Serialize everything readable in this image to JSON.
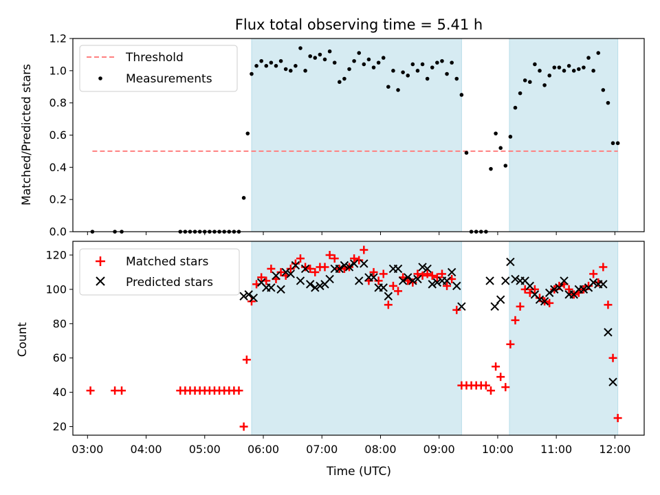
{
  "chart_data": [
    {
      "type": "scatter",
      "title": "Flux total observing time = 5.41 h",
      "xlabel": "",
      "ylabel": "Matched/Predicted stars",
      "xlim": [
        "02:45",
        "12:30"
      ],
      "ylim": [
        0,
        1.2
      ],
      "yticks": [
        "0.0",
        "0.2",
        "0.4",
        "0.6",
        "0.8",
        "1.0",
        "1.2"
      ],
      "grid": false,
      "legend_position": "top-left",
      "shaded_intervals": [
        [
          "05:48",
          "09:23"
        ],
        [
          "10:12",
          "12:03"
        ]
      ],
      "threshold": {
        "name": "Threshold",
        "value": 0.5,
        "x_start": "03:05",
        "x_end": "12:03",
        "color": "#ff7f7f"
      },
      "series": [
        {
          "name": "Measurements",
          "color": "#000000",
          "x": [
            "03:05",
            "03:28",
            "03:35",
            "04:35",
            "04:40",
            "04:45",
            "04:50",
            "04:55",
            "05:00",
            "05:05",
            "05:10",
            "05:15",
            "05:20",
            "05:25",
            "05:30",
            "05:35",
            "05:40",
            "05:44",
            "05:48",
            "05:53",
            "05:58",
            "06:03",
            "06:08",
            "06:13",
            "06:18",
            "06:23",
            "06:28",
            "06:33",
            "06:38",
            "06:43",
            "06:48",
            "06:53",
            "06:58",
            "07:03",
            "07:08",
            "07:13",
            "07:18",
            "07:23",
            "07:28",
            "07:33",
            "07:38",
            "07:43",
            "07:48",
            "07:53",
            "07:58",
            "08:03",
            "08:08",
            "08:13",
            "08:18",
            "08:23",
            "08:28",
            "08:33",
            "08:38",
            "08:43",
            "08:48",
            "08:53",
            "08:58",
            "09:03",
            "09:08",
            "09:13",
            "09:18",
            "09:23",
            "09:28",
            "09:33",
            "09:38",
            "09:43",
            "09:48",
            "09:53",
            "09:58",
            "10:03",
            "10:08",
            "10:13",
            "10:18",
            "10:23",
            "10:28",
            "10:33",
            "10:38",
            "10:43",
            "10:48",
            "10:53",
            "10:58",
            "11:03",
            "11:08",
            "11:13",
            "11:18",
            "11:23",
            "11:28",
            "11:33",
            "11:38",
            "11:43",
            "11:48",
            "11:53",
            "11:58",
            "12:03"
          ],
          "y": [
            0,
            0,
            0,
            0,
            0,
            0,
            0,
            0,
            0,
            0,
            0,
            0,
            0,
            0,
            0,
            0,
            0.21,
            0.61,
            0.98,
            1.03,
            1.06,
            1.03,
            1.05,
            1.03,
            1.06,
            1.01,
            1.0,
            1.03,
            1.14,
            1.0,
            1.09,
            1.08,
            1.1,
            1.07,
            1.12,
            1.05,
            0.93,
            0.95,
            1.01,
            1.06,
            1.11,
            1.04,
            1.07,
            1.02,
            1.05,
            1.08,
            0.9,
            1.0,
            0.88,
            0.99,
            0.97,
            1.04,
            1.0,
            1.04,
            0.95,
            1.02,
            1.05,
            1.06,
            0.98,
            1.05,
            0.95,
            0.85,
            0.49,
            0,
            0,
            0,
            0,
            0.39,
            0.61,
            0.52,
            0.41,
            0.59,
            0.77,
            0.86,
            0.94,
            0.93,
            1.04,
            1.0,
            0.91,
            0.97,
            1.02,
            1.02,
            1.0,
            1.03,
            1.0,
            1.01,
            1.02,
            1.08,
            1.0,
            1.11,
            0.88,
            0.8,
            0.55,
            0.55
          ]
        }
      ]
    },
    {
      "type": "scatter",
      "title": "",
      "xlabel": "Time (UTC)",
      "ylabel": "Count",
      "xlim": [
        "02:45",
        "12:30"
      ],
      "ylim": [
        15,
        128
      ],
      "yticks": [
        "20",
        "40",
        "60",
        "80",
        "100",
        "120"
      ],
      "xticks": [
        "03:00",
        "04:00",
        "05:00",
        "06:00",
        "07:00",
        "08:00",
        "09:00",
        "10:00",
        "11:00",
        "12:00"
      ],
      "grid": false,
      "legend_position": "top-left",
      "shaded_intervals": [
        [
          "05:48",
          "09:23"
        ],
        [
          "10:12",
          "12:03"
        ]
      ],
      "series": [
        {
          "name": "Matched stars",
          "marker": "plus",
          "color": "#ff0000",
          "x": [
            "03:03",
            "03:28",
            "03:35",
            "04:35",
            "04:40",
            "04:45",
            "04:50",
            "04:55",
            "05:00",
            "05:05",
            "05:10",
            "05:15",
            "05:20",
            "05:25",
            "05:30",
            "05:35",
            "05:40",
            "05:43",
            "05:48",
            "05:53",
            "05:58",
            "06:03",
            "06:08",
            "06:13",
            "06:18",
            "06:23",
            "06:28",
            "06:33",
            "06:38",
            "06:43",
            "06:48",
            "06:53",
            "06:58",
            "07:03",
            "07:08",
            "07:13",
            "07:18",
            "07:23",
            "07:28",
            "07:33",
            "07:38",
            "07:43",
            "07:48",
            "07:53",
            "07:58",
            "08:03",
            "08:08",
            "08:13",
            "08:18",
            "08:23",
            "08:28",
            "08:33",
            "08:38",
            "08:43",
            "08:48",
            "08:53",
            "08:58",
            "09:03",
            "09:08",
            "09:13",
            "09:18",
            "09:23",
            "09:28",
            "09:33",
            "09:38",
            "09:43",
            "09:48",
            "09:53",
            "09:58",
            "10:03",
            "10:08",
            "10:13",
            "10:18",
            "10:23",
            "10:28",
            "10:33",
            "10:38",
            "10:43",
            "10:48",
            "10:53",
            "10:58",
            "11:03",
            "11:08",
            "11:13",
            "11:18",
            "11:23",
            "11:28",
            "11:33",
            "11:38",
            "11:43",
            "11:48",
            "11:53",
            "11:58",
            "12:03"
          ],
          "y": [
            41,
            41,
            41,
            41,
            41,
            41,
            41,
            41,
            41,
            41,
            41,
            41,
            41,
            41,
            41,
            41,
            20,
            59,
            93,
            103,
            107,
            105,
            112,
            106,
            110,
            108,
            112,
            115,
            118,
            113,
            112,
            110,
            113,
            113,
            120,
            118,
            112,
            112,
            113,
            118,
            117,
            123,
            105,
            110,
            105,
            109,
            91,
            102,
            99,
            107,
            105,
            104,
            109,
            108,
            109,
            108,
            107,
            109,
            102,
            106,
            88,
            44,
            44,
            44,
            44,
            44,
            44,
            41,
            55,
            49,
            43,
            68,
            82,
            90,
            100,
            98,
            100,
            95,
            93,
            92,
            100,
            102,
            103,
            100,
            97,
            98,
            100,
            102,
            109,
            104,
            113,
            91,
            60,
            25
          ],
          "x_offsets_note": ""
        },
        {
          "name": "Predicted stars",
          "marker": "x",
          "color": "#000000",
          "x": [
            "05:40",
            "05:45",
            "05:50",
            "05:58",
            "06:03",
            "06:08",
            "06:13",
            "06:18",
            "06:23",
            "06:28",
            "06:33",
            "06:38",
            "06:43",
            "06:48",
            "06:53",
            "06:58",
            "07:03",
            "07:08",
            "07:13",
            "07:18",
            "07:23",
            "07:28",
            "07:33",
            "07:38",
            "07:43",
            "07:48",
            "07:53",
            "07:58",
            "08:03",
            "08:08",
            "08:13",
            "08:18",
            "08:23",
            "08:28",
            "08:33",
            "08:38",
            "08:43",
            "08:48",
            "08:53",
            "08:58",
            "09:03",
            "09:08",
            "09:13",
            "09:18",
            "09:23",
            "09:28",
            "09:52",
            "09:57",
            "10:03",
            "10:08",
            "10:13",
            "10:18",
            "10:23",
            "10:28",
            "10:33",
            "10:38",
            "10:43",
            "10:48",
            "10:53",
            "10:58",
            "11:03",
            "11:08",
            "11:13",
            "11:18",
            "11:23",
            "11:28",
            "11:33",
            "11:38",
            "11:43",
            "11:48",
            "11:53",
            "11:58",
            "12:03"
          ],
          "y": [
            96,
            97,
            95,
            104,
            101,
            101,
            108,
            100,
            110,
            109,
            114,
            105,
            112,
            103,
            101,
            102,
            103,
            106,
            112,
            112,
            114,
            113,
            115,
            105,
            115,
            107,
            107,
            101,
            101,
            96,
            112,
            112,
            105,
            107,
            105,
            106,
            113,
            112,
            103,
            104,
            105,
            105,
            110,
            102,
            90,
            null,
            105,
            90,
            94,
            105,
            116,
            106,
            105,
            105,
            102,
            97,
            94,
            93,
            98,
            100,
            101,
            105,
            97,
            97,
            100,
            100,
            101,
            104,
            103,
            103,
            75,
            46,
            null
          ]
        }
      ]
    }
  ]
}
